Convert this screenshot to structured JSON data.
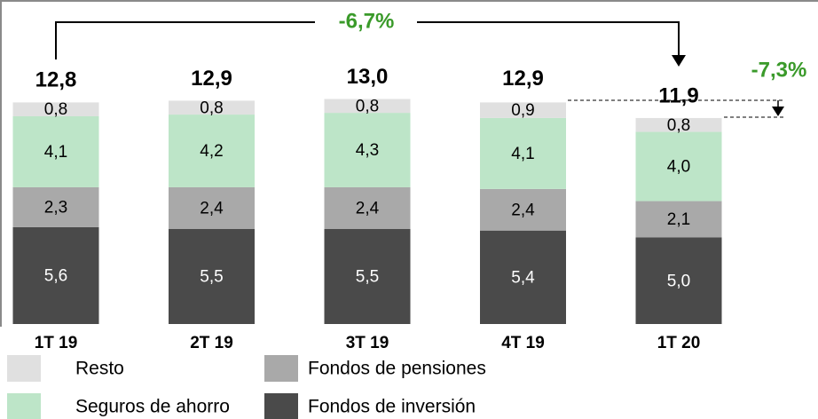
{
  "chart_data": {
    "type": "stacked_bar",
    "categories": [
      "1T 19",
      "2T 19",
      "3T 19",
      "4T 19",
      "1T 20"
    ],
    "series": [
      {
        "name": "Fondos de inversión",
        "color": "#4a4a4a",
        "values": [
          5.6,
          5.5,
          5.5,
          5.4,
          5.0
        ],
        "value_labels": [
          "5,6",
          "5,5",
          "5,5",
          "5,4",
          "5,0"
        ]
      },
      {
        "name": "Fondos de pensiones",
        "color": "#a9a9a9",
        "values": [
          2.3,
          2.4,
          2.4,
          2.4,
          2.1
        ],
        "value_labels": [
          "2,3",
          "2,4",
          "2,4",
          "2,4",
          "2,1"
        ]
      },
      {
        "name": "Seguros de ahorro",
        "color": "#bde5c8",
        "values": [
          4.1,
          4.2,
          4.3,
          4.1,
          4.0
        ],
        "value_labels": [
          "4,1",
          "4,2",
          "4,3",
          "4,1",
          "4,0"
        ]
      },
      {
        "name": "Resto",
        "color": "#e0e0e0",
        "values": [
          0.8,
          0.8,
          0.8,
          0.9,
          0.8
        ],
        "value_labels": [
          "0,8",
          "0,8",
          "0,8",
          "0,9",
          "0,8"
        ]
      }
    ],
    "totals": [
      12.8,
      12.9,
      13.0,
      12.9,
      11.9
    ],
    "total_labels": [
      "12,8",
      "12,9",
      "13,0",
      "12,9",
      "11,9"
    ],
    "annotations": [
      "-6,7%",
      "-7,3%"
    ],
    "annotation_color": "#3a9a2a"
  }
}
